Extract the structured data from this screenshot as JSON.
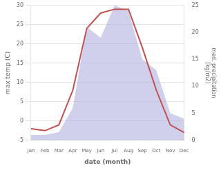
{
  "chart_data": {
    "type": "line",
    "categories": [
      "Jan",
      "Feb",
      "Mar",
      "Apr",
      "May",
      "Jun",
      "Jul",
      "Aug",
      "Sep",
      "Oct",
      "Nov",
      "Dec"
    ],
    "series": [
      {
        "type": "area",
        "axis": "y2",
        "color": "#aaaadd",
        "values": [
          1,
          1,
          1.5,
          6,
          21,
          19,
          25,
          24,
          15,
          13,
          5,
          4
        ]
      },
      {
        "type": "line",
        "color": "#c0504d",
        "values": [
          -2,
          -2.5,
          -1,
          8,
          24,
          28,
          29,
          29,
          19,
          8,
          -1,
          -3
        ]
      }
    ],
    "xlabel": "date (month)",
    "ylabel": "max temp (C)",
    "y2label": "med. precipitation\n(kg/m2)",
    "ylim": [
      -5,
      30
    ],
    "yticks": [
      -5,
      0,
      5,
      10,
      15,
      20,
      25,
      30
    ],
    "y2lim": [
      0,
      25
    ],
    "y2ticks": [
      0,
      5,
      10,
      15,
      20,
      25
    ],
    "grid": "y"
  }
}
